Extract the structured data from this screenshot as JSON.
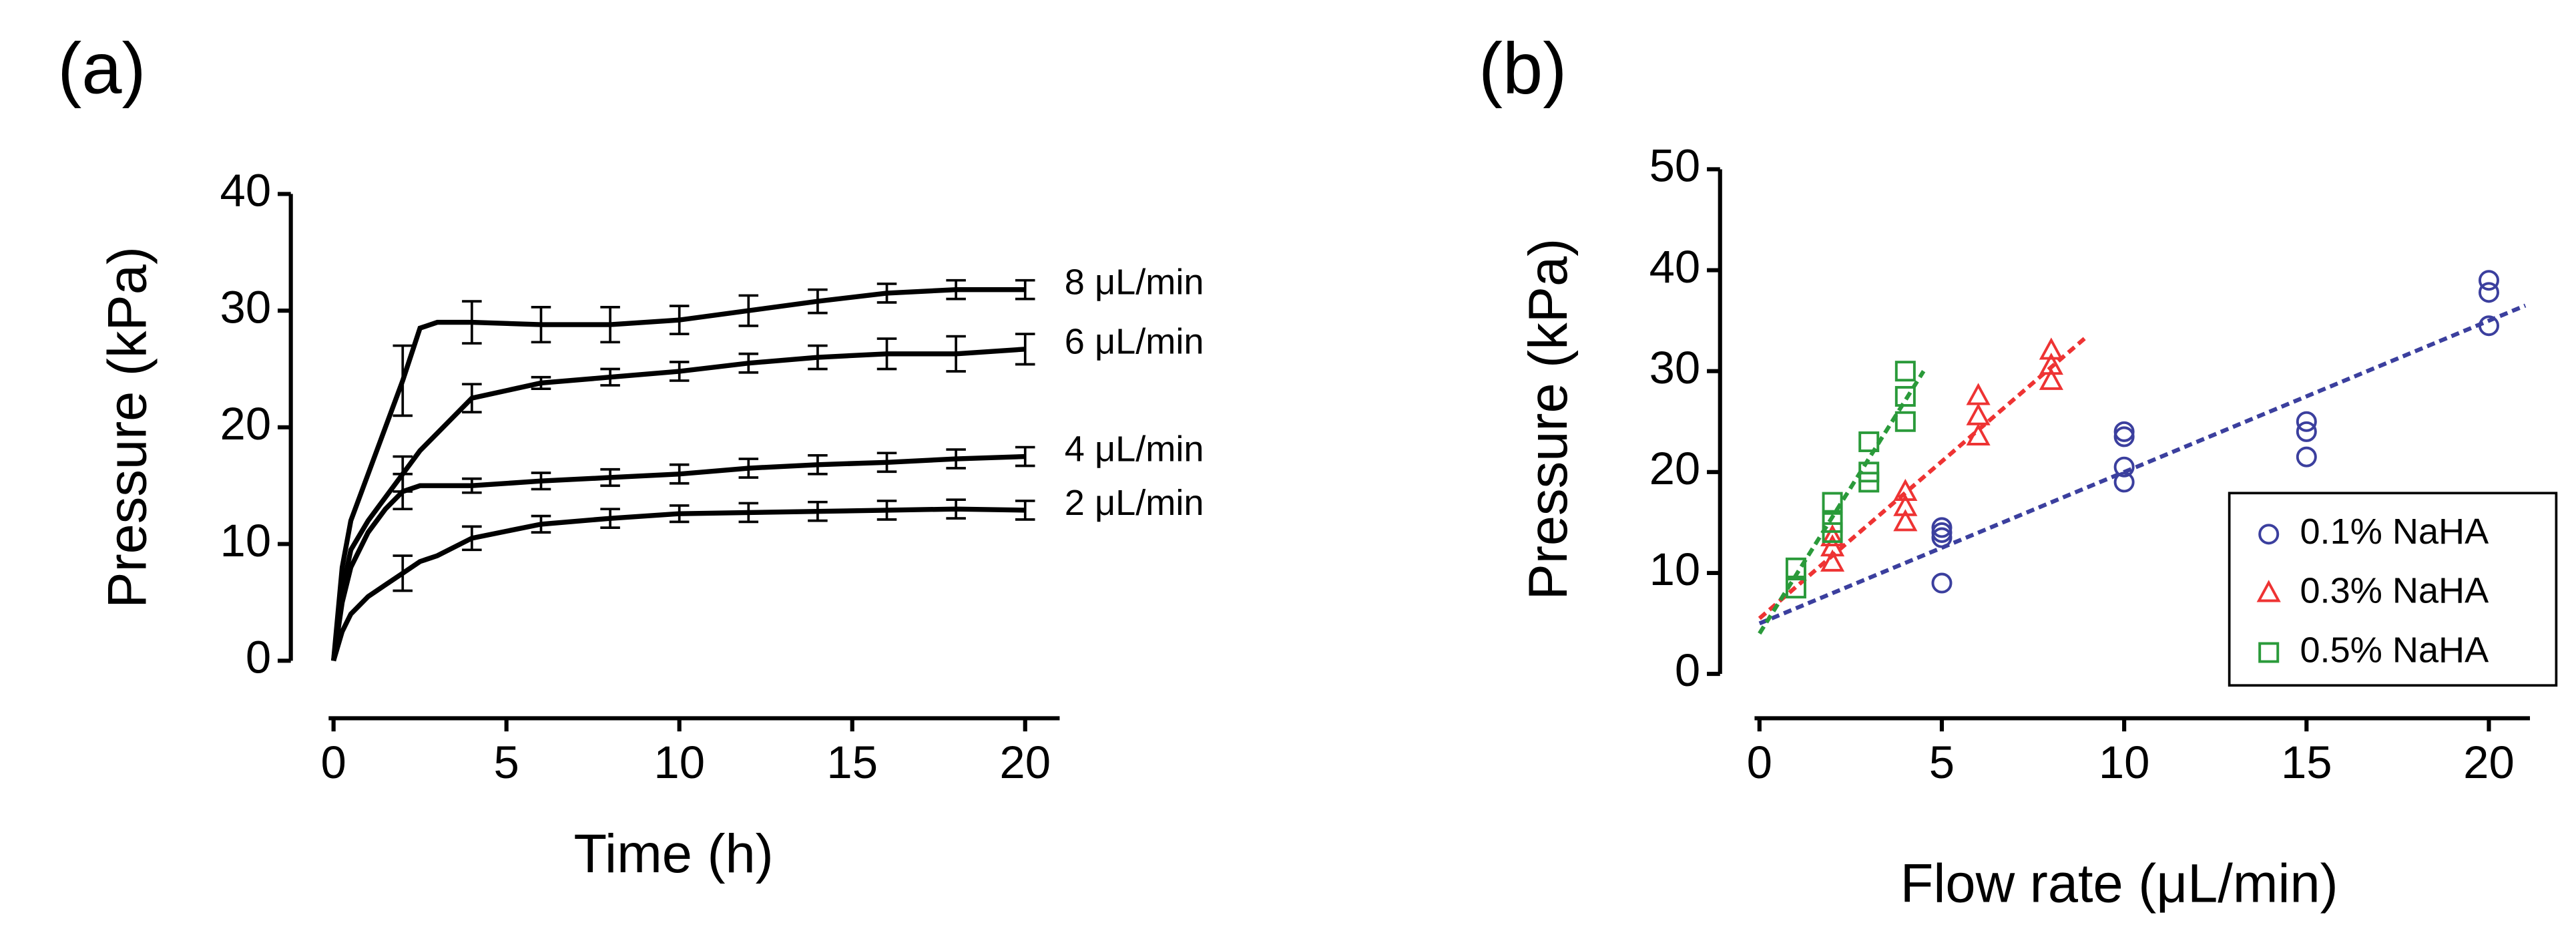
{
  "chart_data": [
    {
      "type": "line",
      "panel_label": "(a)",
      "x_label": "Time (h)",
      "y_label": "Pressure (kPa)",
      "xlim": [
        0,
        20
      ],
      "xticks": [
        0,
        5,
        10,
        15,
        20
      ],
      "ylim": [
        0,
        40
      ],
      "yticks": [
        0,
        10,
        20,
        30,
        40
      ],
      "x": [
        0,
        0.25,
        0.5,
        1,
        1.5,
        2,
        2.5,
        3,
        4,
        6,
        8,
        10,
        12,
        14,
        16,
        18,
        20
      ],
      "series": [
        {
          "name": "8 μL/min",
          "color": "#000000",
          "values": [
            0,
            8,
            12,
            16,
            20,
            24,
            28.5,
            29,
            29,
            28.8,
            28.8,
            29.2,
            30,
            30.8,
            31.5,
            31.8,
            31.8
          ],
          "errors": [
            null,
            null,
            null,
            null,
            null,
            3,
            null,
            null,
            1.8,
            1.5,
            1.5,
            1.2,
            1.3,
            1,
            0.8,
            0.8,
            0.8
          ]
        },
        {
          "name": "6 μL/min",
          "color": "#000000",
          "values": [
            0,
            6,
            9.5,
            12,
            14,
            16,
            18,
            19.5,
            22.5,
            23.8,
            24.3,
            24.8,
            25.5,
            26,
            26.3,
            26.3,
            26.7
          ],
          "errors": [
            null,
            null,
            null,
            null,
            null,
            1.5,
            null,
            null,
            1.2,
            0.5,
            0.7,
            0.8,
            0.8,
            1,
            1.3,
            1.5,
            1.3
          ]
        },
        {
          "name": "4 μL/min",
          "color": "#000000",
          "values": [
            0,
            5,
            8,
            11,
            13,
            14.5,
            15,
            15,
            15,
            15.4,
            15.7,
            16,
            16.5,
            16.8,
            17,
            17.3,
            17.5
          ],
          "errors": [
            null,
            null,
            null,
            null,
            null,
            1.5,
            null,
            null,
            0.6,
            0.7,
            0.7,
            0.8,
            0.8,
            0.8,
            0.8,
            0.8,
            0.8
          ]
        },
        {
          "name": "2 μL/min",
          "color": "#000000",
          "values": [
            0,
            2.5,
            4,
            5.5,
            6.5,
            7.5,
            8.5,
            9,
            10.5,
            11.7,
            12.2,
            12.6,
            12.7,
            12.8,
            12.9,
            13,
            12.9
          ],
          "errors": [
            null,
            null,
            null,
            null,
            null,
            1.5,
            null,
            null,
            1,
            0.7,
            0.8,
            0.7,
            0.8,
            0.8,
            0.8,
            0.8,
            0.8
          ]
        }
      ]
    },
    {
      "type": "scatter",
      "panel_label": "(b)",
      "x_label": "Flow rate (μL/min)",
      "y_label": "Pressure (kPa)",
      "xlim": [
        0,
        20
      ],
      "xticks": [
        0,
        5,
        10,
        15,
        20
      ],
      "ylim": [
        0,
        50
      ],
      "yticks": [
        0,
        10,
        20,
        30,
        40,
        50
      ],
      "series": [
        {
          "name": "0.1% NaHA",
          "color": "#3b3f9e",
          "marker": "circle",
          "x": [
            5,
            5,
            5,
            5,
            10,
            10,
            10,
            10,
            15,
            15,
            15,
            20,
            20,
            20
          ],
          "values": [
            14.5,
            14,
            13.5,
            9,
            24,
            23.5,
            20.5,
            19,
            25,
            24,
            21.5,
            39,
            37.8,
            34.5
          ],
          "fit_x": [
            0,
            21
          ],
          "fit_y": [
            5,
            36.5
          ]
        },
        {
          "name": "0.3% NaHA",
          "color": "#ee3333",
          "marker": "triangle",
          "x": [
            2,
            2,
            2,
            4,
            4,
            4,
            6,
            6,
            6,
            8,
            8,
            8
          ],
          "values": [
            13.5,
            12.5,
            11,
            18,
            16.5,
            15,
            27.5,
            25.5,
            23.5,
            32,
            30.5,
            29
          ],
          "fit_x": [
            0,
            9
          ],
          "fit_y": [
            5.5,
            33.5
          ]
        },
        {
          "name": "0.5% NaHA",
          "color": "#2a9a3a",
          "marker": "square",
          "x": [
            1,
            1,
            2,
            2,
            2,
            3,
            3,
            3,
            4,
            4,
            4
          ],
          "values": [
            10.5,
            8.5,
            17,
            15,
            14,
            23,
            20,
            19,
            30,
            27.5,
            25
          ],
          "fit_x": [
            0,
            4.5
          ],
          "fit_y": [
            4,
            30
          ]
        }
      ]
    }
  ]
}
